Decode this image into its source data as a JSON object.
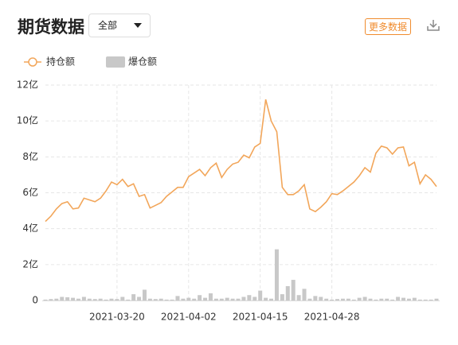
{
  "header": {
    "title": "期货数据",
    "filter": "全部",
    "more_button": "更多数据"
  },
  "chart_data": {
    "type": "line",
    "categories": [
      null,
      null,
      null,
      null,
      null,
      null,
      null,
      null,
      null,
      null,
      null,
      null,
      null,
      "2021-03-20",
      null,
      null,
      null,
      null,
      null,
      null,
      null,
      null,
      null,
      null,
      null,
      null,
      "2021-04-02",
      null,
      null,
      null,
      null,
      null,
      null,
      null,
      null,
      null,
      null,
      null,
      null,
      "2021-04-15",
      null,
      null,
      null,
      null,
      null,
      null,
      null,
      null,
      null,
      null,
      null,
      null,
      "2021-04-28",
      null,
      null,
      null,
      null,
      null,
      null,
      null,
      null,
      null,
      null,
      null,
      null,
      null,
      null,
      null,
      null,
      null,
      null,
      null
    ],
    "series": [
      {
        "name": "持仓额",
        "type": "line",
        "color": "#f2a65a",
        "values": [
          4.4,
          4.7,
          5.1,
          5.4,
          5.5,
          5.1,
          5.15,
          5.7,
          5.6,
          5.5,
          5.7,
          6.1,
          6.6,
          6.45,
          6.75,
          6.35,
          6.5,
          5.8,
          5.9,
          5.15,
          5.3,
          5.45,
          5.8,
          6.05,
          6.3,
          6.3,
          6.9,
          7.1,
          7.3,
          6.95,
          7.4,
          7.65,
          6.85,
          7.3,
          7.6,
          7.7,
          8.1,
          7.95,
          8.55,
          8.75,
          11.2,
          10.0,
          9.4,
          6.3,
          5.9,
          5.9,
          6.1,
          6.45,
          5.1,
          4.95,
          5.2,
          5.5,
          5.95,
          5.9,
          6.1,
          6.35,
          6.6,
          6.95,
          7.4,
          7.15,
          8.2,
          8.6,
          8.5,
          8.15,
          8.5,
          8.55,
          7.5,
          7.7,
          6.5,
          7.0,
          6.75,
          6.35
        ]
      },
      {
        "name": "爆仓额",
        "type": "bar",
        "color": "#c8c8c8",
        "values": [
          0.05,
          0.08,
          0.1,
          0.2,
          0.18,
          0.15,
          0.1,
          0.2,
          0.1,
          0.08,
          0.1,
          0.05,
          0.1,
          0.08,
          0.2,
          0.05,
          0.35,
          0.2,
          0.6,
          0.1,
          0.08,
          0.1,
          0.05,
          0.05,
          0.25,
          0.1,
          0.15,
          0.1,
          0.3,
          0.15,
          0.4,
          0.1,
          0.1,
          0.15,
          0.1,
          0.1,
          0.2,
          0.3,
          0.2,
          0.55,
          0.15,
          0.1,
          2.85,
          0.35,
          0.8,
          1.15,
          0.3,
          0.65,
          0.1,
          0.25,
          0.2,
          0.1,
          0.05,
          0.08,
          0.1,
          0.1,
          0.05,
          0.15,
          0.2,
          0.1,
          0.05,
          0.1,
          0.1,
          0.05,
          0.2,
          0.15,
          0.1,
          0.15,
          0.05,
          0.05,
          0.05,
          0.1
        ]
      }
    ],
    "ylim": [
      0,
      12
    ],
    "yticks": [
      0,
      {
        "value": 2,
        "label": "2亿"
      },
      {
        "value": 4,
        "label": "4亿"
      },
      {
        "value": 6,
        "label": "6亿"
      },
      {
        "value": 8,
        "label": "8亿"
      },
      {
        "value": 10,
        "label": "10亿"
      },
      {
        "value": 12,
        "label": "12亿"
      }
    ],
    "grid": true
  }
}
